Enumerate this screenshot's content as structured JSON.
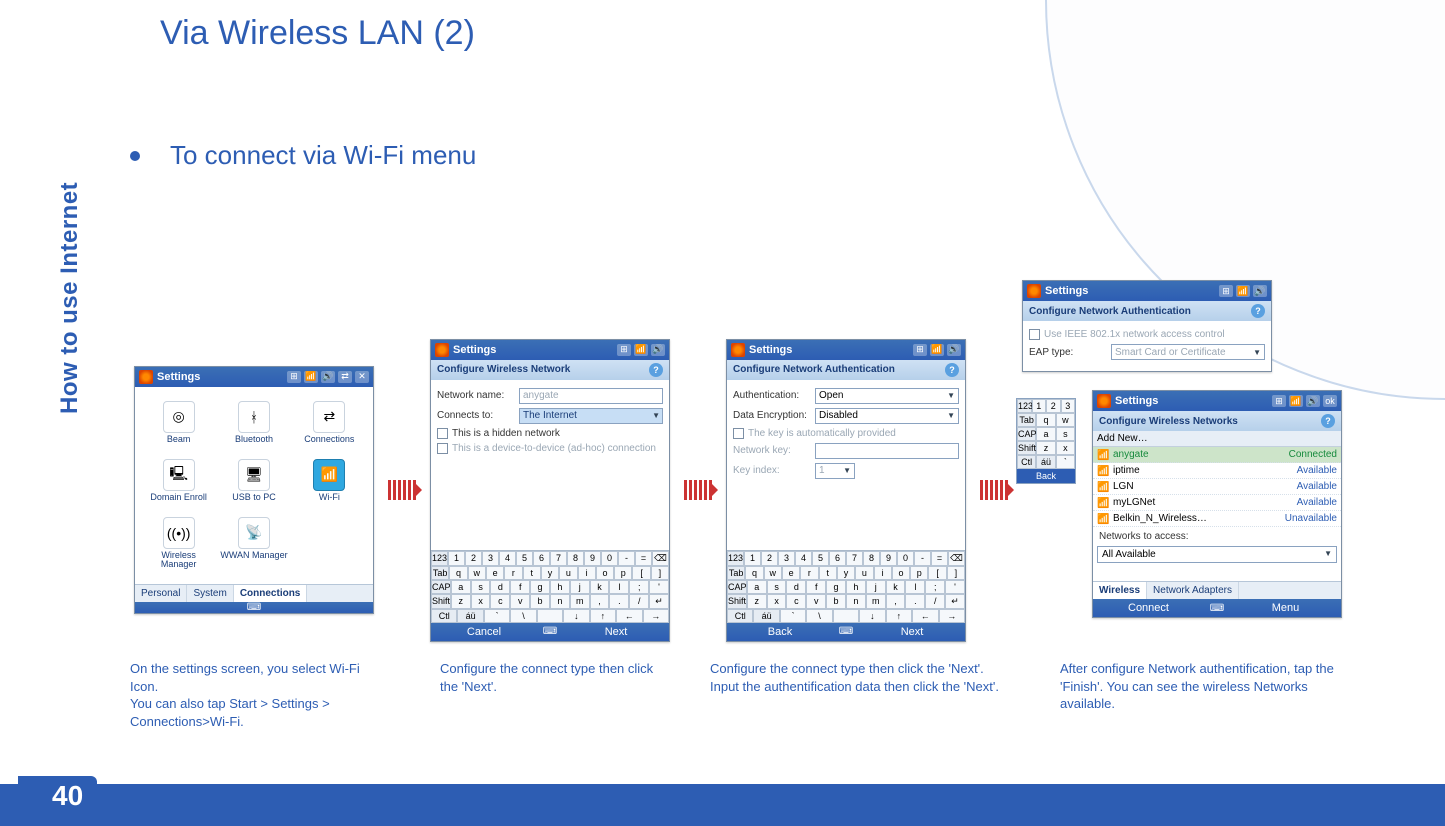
{
  "page_number": "40",
  "sidebar_label": "How to use Internet",
  "title": "Via Wireless LAN (2)",
  "bullet": "To connect via Wi-Fi menu",
  "palette": {
    "blue": "#2d5db3",
    "titlebar_grad_top": "#3b6fb5",
    "connected_green": "#168a3c"
  },
  "window_common": {
    "window_title": "Settings",
    "status_icons": [
      "⊞",
      "📶",
      "🔊"
    ]
  },
  "step1": {
    "icons": [
      {
        "name": "beam-icon",
        "glyph": "◎",
        "label": "Beam"
      },
      {
        "name": "bluetooth-icon",
        "glyph": "ᚼ",
        "label": "Bluetooth"
      },
      {
        "name": "connections-icon",
        "glyph": "⇄",
        "label": "Connections"
      },
      {
        "name": "domain-enroll-icon",
        "glyph": "🖳",
        "label": "Domain Enroll"
      },
      {
        "name": "usb-to-pc-icon",
        "glyph": "🖥",
        "label": "USB to PC"
      },
      {
        "name": "wifi-icon",
        "glyph": "📶",
        "label": "Wi-Fi",
        "hl": true
      },
      {
        "name": "wireless-manager-icon",
        "glyph": "((•))",
        "label": "Wireless Manager"
      },
      {
        "name": "wwan-manager-icon",
        "glyph": "📡",
        "label": "WWAN Manager"
      }
    ],
    "tabs": [
      "Personal",
      "System",
      "Connections"
    ],
    "active_tab": 2,
    "title_extras": [
      "⇄",
      "✕"
    ]
  },
  "step2": {
    "subheader": "Configure Wireless Network",
    "network_name_label": "Network name:",
    "network_name_value": "anygate",
    "connects_to_label": "Connects to:",
    "connects_to_value": "The Internet",
    "chk_hidden": "This is a hidden network",
    "chk_adhoc": "This is a device-to-device (ad-hoc) connection",
    "soft_left": "Cancel",
    "soft_right": "Next"
  },
  "step3": {
    "subheader": "Configure Network Authentication",
    "auth_label": "Authentication:",
    "auth_value": "Open",
    "enc_label": "Data Encryption:",
    "enc_value": "Disabled",
    "chk_keyauto": "The key is automatically provided",
    "key_label": "Network key:",
    "idx_label": "Key index:",
    "idx_value": "1",
    "soft_left": "Back",
    "soft_right": "Next"
  },
  "step4_auth": {
    "subheader": "Configure Network Authentication",
    "chk_8021x": "Use IEEE 802.1x network access control",
    "eap_label": "EAP type:",
    "eap_value": "Smart Card or Certificate",
    "soft_left": "Back"
  },
  "step4_list": {
    "subheader": "Configure Wireless Networks",
    "title_extra": "ok",
    "add_new": "Add New…",
    "networks": [
      {
        "name": "anygate",
        "status": "Connected",
        "connected": true
      },
      {
        "name": "iptime",
        "status": "Available"
      },
      {
        "name": "LGN",
        "status": "Available"
      },
      {
        "name": "myLGNet",
        "status": "Available"
      },
      {
        "name": "Belkin_N_Wireless…",
        "status": "Unavailable"
      }
    ],
    "filter_label": "Networks to access:",
    "filter_value": "All Available",
    "tabs": [
      "Wireless",
      "Network Adapters"
    ],
    "soft_left": "Connect",
    "soft_right": "Menu"
  },
  "kbd": {
    "rows": [
      [
        "123",
        "1",
        "2",
        "3",
        "4",
        "5",
        "6",
        "7",
        "8",
        "9",
        "0",
        "-",
        "=",
        "⌫"
      ],
      [
        "Tab",
        "q",
        "w",
        "e",
        "r",
        "t",
        "y",
        "u",
        "i",
        "o",
        "p",
        "[",
        "]"
      ],
      [
        "CAP",
        "a",
        "s",
        "d",
        "f",
        "g",
        "h",
        "j",
        "k",
        "l",
        ";",
        "'"
      ],
      [
        "Shift",
        "z",
        "x",
        "c",
        "v",
        "b",
        "n",
        "m",
        ",",
        ".",
        "/",
        "↵"
      ],
      [
        "Ctl",
        "áü",
        "`",
        "\\",
        " ",
        "↓",
        "↑",
        "←",
        "→"
      ]
    ]
  },
  "mini_kbd": {
    "rows": [
      [
        "123",
        "1",
        "2",
        "3"
      ],
      [
        "Tab",
        "q",
        "w"
      ],
      [
        "CAP",
        "a",
        "s"
      ],
      [
        "Shift",
        "z",
        "x"
      ],
      [
        "Ctl",
        "áü",
        "`"
      ]
    ],
    "back_label": "Back"
  },
  "captions": [
    "On the settings screen, you select Wi-Fi Icon.\nYou can also tap Start > Settings > Connections>Wi-Fi.",
    "Configure the connect type then click the 'Next'.",
    "Configure the connect type then click the 'Next'. Input the authentification data then click the 'Next'.",
    "After configure Network authentification, tap the 'Finish'. You can see the wireless Networks available."
  ]
}
